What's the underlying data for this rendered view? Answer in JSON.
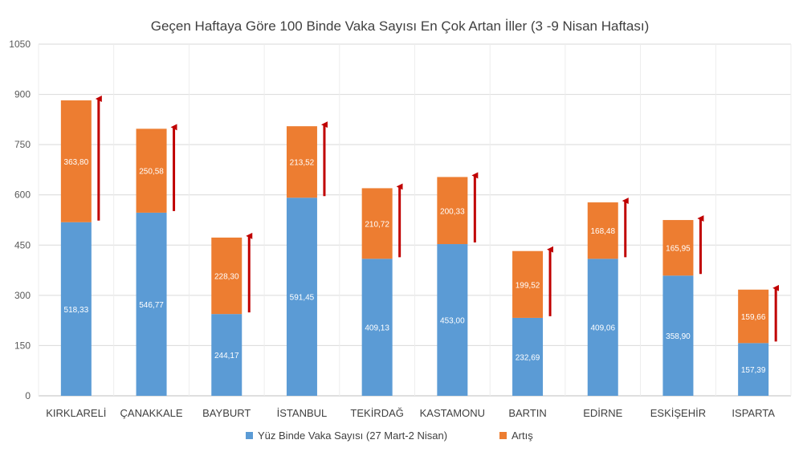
{
  "chart_data": {
    "type": "bar",
    "stacked": true,
    "title": "Geçen Haftaya Göre 100 Binde Vaka Sayısı En Çok Artan İller (3   -9 Nisan Haftası)",
    "xlabel": "",
    "ylabel": "",
    "ylim": [
      0,
      1050
    ],
    "yticks": [
      "0",
      "150",
      "300",
      "450",
      "600",
      "750",
      "900",
      "1050"
    ],
    "grid": true,
    "legend_position": "bottom",
    "categories": [
      "KIRKLARELİ",
      "ÇANAKKALE",
      "BAYBURT",
      "İSTANBUL",
      "TEKİRDAĞ",
      "KASTAMONU",
      "BARTIN",
      "EDİRNE",
      "ESKİŞEHİR",
      "ISPARTA"
    ],
    "series": [
      {
        "name": "Yüz Binde Vaka Sayısı (27 Mart-2 Nisan)",
        "color": "#5B9BD5",
        "values": [
          518.33,
          546.77,
          244.17,
          591.45,
          409.13,
          453.0,
          232.69,
          409.06,
          358.9,
          157.39
        ],
        "labels": [
          "518,33",
          "546,77",
          "244,17",
          "591,45",
          "409,13",
          "453,00",
          "232,69",
          "409,06",
          "358,90",
          "157,39"
        ]
      },
      {
        "name": "Artış",
        "color": "#ED7D31",
        "values": [
          363.8,
          250.58,
          228.3,
          213.52,
          210.72,
          200.33,
          199.52,
          168.48,
          165.95,
          159.66
        ],
        "labels": [
          "363,80",
          "250,58",
          "228,30",
          "213,52",
          "210,72",
          "200,33",
          "199,52",
          "168,48",
          "165,95",
          "159,66"
        ]
      }
    ],
    "annotation_color": "#C00000",
    "annotation_icon": "up-arrow-icon"
  }
}
